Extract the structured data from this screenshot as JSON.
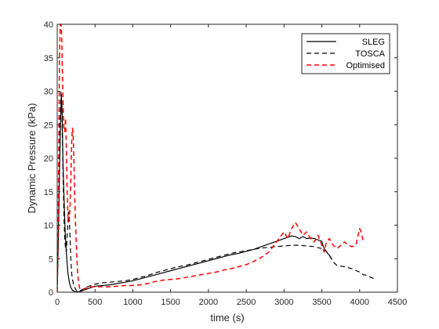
{
  "chart_data": {
    "type": "line",
    "title": "",
    "xlabel": "time (s)",
    "ylabel": "Dynamic Pressure (kPa)",
    "xlim": [
      0,
      4500
    ],
    "ylim": [
      0,
      40
    ],
    "x_ticks": [
      0,
      500,
      1000,
      1500,
      2000,
      2500,
      3000,
      3500,
      4000,
      4500
    ],
    "y_ticks": [
      0,
      5,
      10,
      15,
      20,
      25,
      30,
      35,
      40
    ],
    "grid": false,
    "legend_position": "top-right",
    "series": [
      {
        "name": "SLEG",
        "color": "#000000",
        "dash": "solid",
        "x": [
          0,
          15,
          30,
          45,
          55,
          65,
          75,
          90,
          105,
          120,
          140,
          160,
          180,
          200,
          230,
          260,
          300,
          350,
          400,
          500,
          600,
          700,
          800,
          900,
          1000,
          1100,
          1200,
          1300,
          1400,
          1500,
          1600,
          1700,
          1800,
          1900,
          2000,
          2100,
          2200,
          2300,
          2400,
          2500,
          2600,
          2700,
          2800,
          2900,
          3000,
          3050,
          3100,
          3150,
          3200,
          3250,
          3300,
          3350,
          3400,
          3450,
          3500,
          3520,
          3550,
          3600,
          3630
        ],
        "y": [
          0.5,
          8,
          18,
          26,
          29.5,
          27,
          20,
          14,
          9,
          6,
          3,
          1.5,
          0.7,
          0.3,
          0.1,
          0.05,
          0.1,
          0.3,
          0.5,
          0.9,
          1.0,
          1.1,
          1.3,
          1.5,
          1.7,
          2.0,
          2.3,
          2.6,
          2.9,
          3.2,
          3.5,
          3.8,
          4.1,
          4.4,
          4.7,
          5.0,
          5.3,
          5.6,
          5.8,
          6.1,
          6.4,
          6.8,
          7.2,
          7.6,
          8.0,
          8.2,
          8.4,
          8.3,
          8.0,
          8.3,
          8.0,
          8.1,
          8.0,
          7.8,
          7.6,
          6.8,
          6.2,
          5.5,
          5.0
        ]
      },
      {
        "name": "TOSCA",
        "color": "#000000",
        "dash": "dashed",
        "x": [
          0,
          10,
          20,
          30,
          40,
          50,
          60,
          70,
          80,
          90,
          100,
          110,
          120,
          130,
          140,
          150,
          160,
          170,
          180,
          190,
          200,
          220,
          240,
          260,
          280,
          300,
          350,
          400,
          450,
          500,
          600,
          700,
          800,
          900,
          1000,
          1100,
          1200,
          1300,
          1400,
          1500,
          1600,
          1700,
          1800,
          1900,
          2000,
          2100,
          2200,
          2300,
          2400,
          2500,
          2600,
          2700,
          2800,
          2900,
          3000,
          3100,
          3200,
          3300,
          3400,
          3500,
          3550,
          3600,
          3650,
          3700,
          3800,
          3900,
          4000,
          4050,
          4100,
          4150,
          4200
        ],
        "y": [
          0,
          5,
          12,
          20,
          26,
          30,
          28,
          22,
          16,
          11,
          8,
          6.5,
          6,
          8,
          10,
          12,
          11,
          8,
          5,
          3,
          2,
          1,
          0.5,
          0.2,
          0.1,
          0.2,
          0.5,
          0.8,
          1.0,
          1.2,
          1.4,
          1.5,
          1.6,
          1.7,
          1.9,
          2.2,
          2.5,
          2.9,
          3.2,
          3.5,
          3.8,
          4.0,
          4.3,
          4.6,
          4.9,
          5.2,
          5.5,
          5.8,
          6.0,
          6.2,
          6.4,
          6.6,
          6.7,
          6.8,
          6.9,
          7.0,
          7.0,
          6.9,
          6.8,
          6.5,
          6.2,
          5.5,
          4.5,
          4.0,
          3.8,
          3.5,
          3.0,
          2.6,
          2.5,
          2.2,
          2.0
        ]
      },
      {
        "name": "Optimised",
        "color": "#ff0000",
        "dash": "dashed",
        "x": [
          0,
          10,
          20,
          30,
          40,
          50,
          60,
          70,
          80,
          90,
          100,
          110,
          120,
          130,
          140,
          150,
          160,
          170,
          180,
          190,
          200,
          210,
          220,
          230,
          240,
          250,
          260,
          270,
          280,
          290,
          300,
          320,
          340,
          360,
          380,
          400,
          450,
          500,
          600,
          700,
          800,
          900,
          1000,
          1100,
          1200,
          1300,
          1400,
          1500,
          1600,
          1700,
          1800,
          1900,
          2000,
          2100,
          2200,
          2300,
          2400,
          2500,
          2600,
          2700,
          2800,
          2900,
          3000,
          3050,
          3100,
          3150,
          3200,
          3250,
          3300,
          3350,
          3400,
          3450,
          3500,
          3530,
          3560,
          3600,
          3650,
          3700,
          3750,
          3800,
          3850,
          3900,
          3950,
          4000,
          4020,
          4050
        ],
        "y": [
          0,
          8,
          20,
          35,
          40,
          40,
          38,
          32,
          27,
          24,
          24,
          26,
          22,
          16,
          12,
          10.5,
          11,
          13,
          17,
          22,
          24.5,
          24,
          20,
          15,
          11,
          8,
          5,
          3,
          1.6,
          0.9,
          0.5,
          0.4,
          0.4,
          0.5,
          0.6,
          0.7,
          0.8,
          0.8,
          0.8,
          0.8,
          0.9,
          1.0,
          1.0,
          1.1,
          1.3,
          1.6,
          1.8,
          1.9,
          2.0,
          2.2,
          2.4,
          2.6,
          2.8,
          3.0,
          3.3,
          3.5,
          3.8,
          4.1,
          4.6,
          5.2,
          6.0,
          7.5,
          9.0,
          8.0,
          9.5,
          10.4,
          9.5,
          8.5,
          9.0,
          8.0,
          7.5,
          8.5,
          7.0,
          6.0,
          7.5,
          8.0,
          7.0,
          6.5,
          7.0,
          7.5,
          7.0,
          6.8,
          7.0,
          9.5,
          9.0,
          7.5
        ]
      }
    ]
  }
}
